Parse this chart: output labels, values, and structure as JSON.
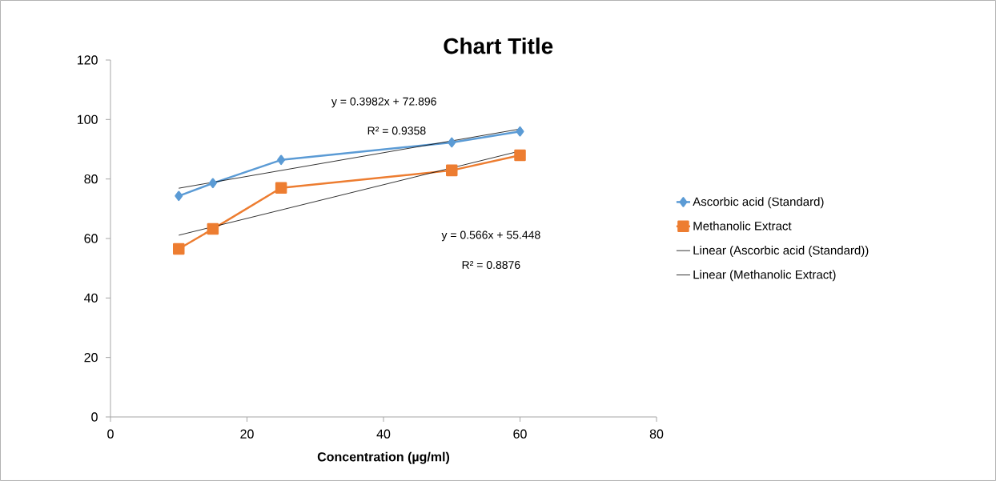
{
  "chart_data": {
    "type": "line",
    "title": "Chart Title",
    "xlabel": "Concentration (µg/ml)",
    "xlim": [
      0,
      80
    ],
    "xticks": [
      0,
      20,
      40,
      60,
      80
    ],
    "ylim": [
      0,
      120
    ],
    "yticks": [
      0,
      20,
      40,
      60,
      80,
      100,
      120
    ],
    "grid": false,
    "legend": "right",
    "series": [
      {
        "name": "Ascorbic acid (Standard)",
        "color": "#5b9bd5",
        "marker": "diamond",
        "x": [
          10,
          15,
          25,
          50,
          60
        ],
        "values": [
          74.3,
          78.6,
          86.4,
          92.3,
          96.0
        ]
      },
      {
        "name": "Methanolic Extract",
        "color": "#ed7d31",
        "marker": "square",
        "x": [
          10,
          15,
          25,
          50,
          60
        ],
        "values": [
          56.5,
          63.2,
          77.0,
          82.9,
          88.0
        ]
      },
      {
        "name": "Linear (Ascorbic acid (Standard))",
        "color": "#000000",
        "marker": "none",
        "x": [
          10,
          60
        ],
        "values": [
          76.9,
          96.8
        ]
      },
      {
        "name": "Linear (Methanolic Extract)",
        "color": "#000000",
        "marker": "none",
        "x": [
          10,
          60
        ],
        "values": [
          61.1,
          89.4
        ]
      }
    ],
    "annotations": [
      "y = 0.3982x + 72.896",
      "R² = 0.9358",
      "y = 0.566x + 55.448",
      "R² = 0.8876"
    ]
  }
}
